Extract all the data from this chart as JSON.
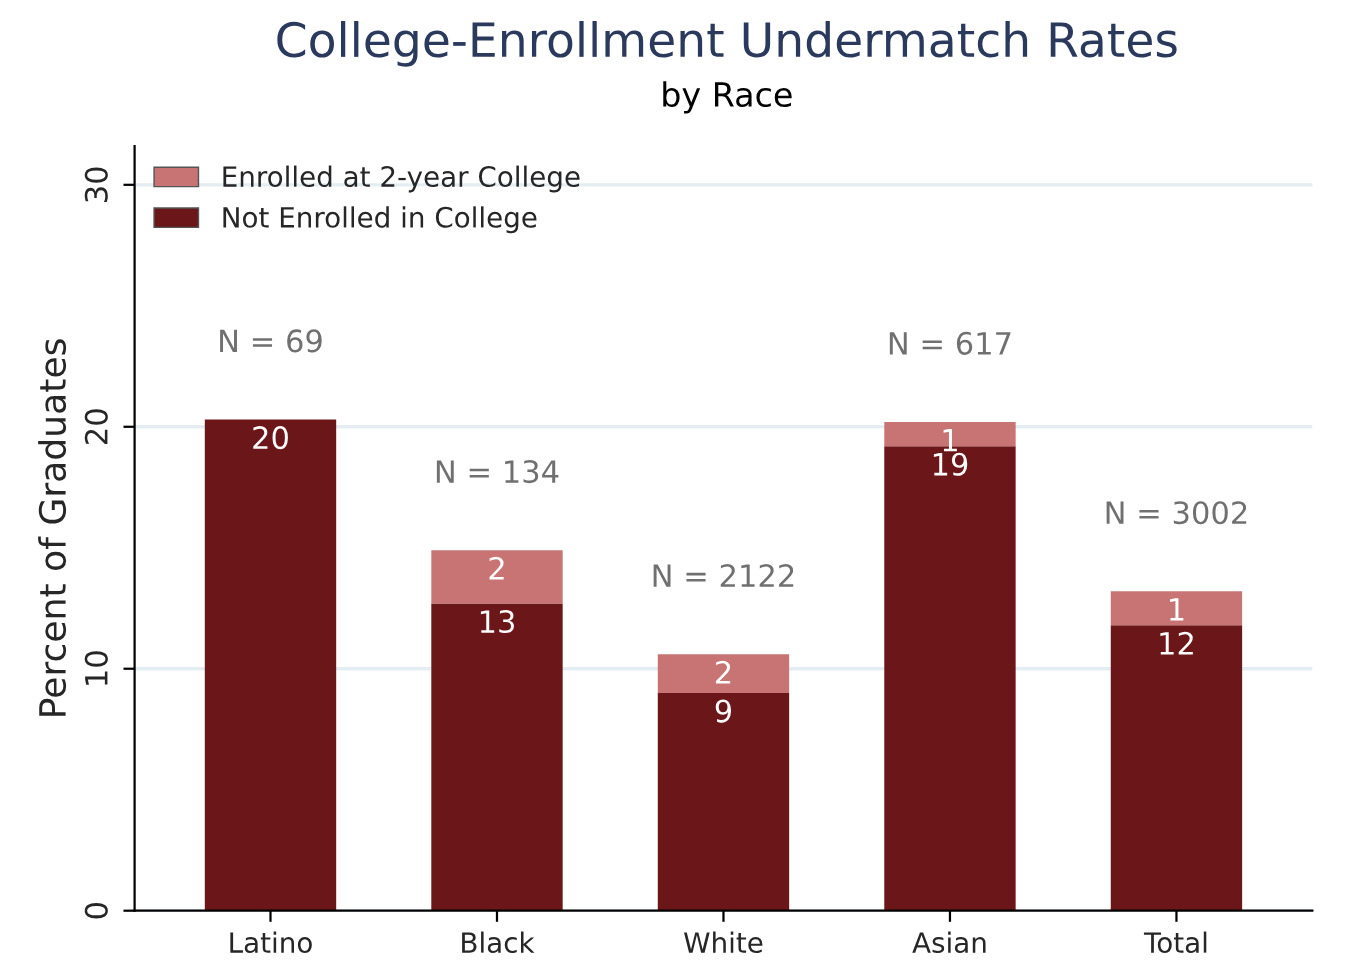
{
  "chart_data": {
    "type": "bar",
    "title": "College-Enrollment Undermatch Rates",
    "subtitle": "by Race",
    "ylabel": "Percent of Graduates",
    "categories": [
      "Latino",
      "Black",
      "White",
      "Asian",
      "Total"
    ],
    "stacked": true,
    "series": [
      {
        "name": "Not Enrolled in College",
        "color": "#6b1619",
        "values": [
          20.3,
          12.7,
          9.0,
          19.2,
          11.8
        ],
        "value_labels": [
          "20",
          "13",
          "9",
          "19",
          "12"
        ]
      },
      {
        "name": "Enrolled at 2-year College",
        "color": "#c87474",
        "values": [
          0,
          2.2,
          1.6,
          1.0,
          1.4
        ],
        "value_labels": [
          null,
          "2",
          "2",
          "1",
          "1"
        ]
      }
    ],
    "annotations": [
      "N = 69",
      "N = 134",
      "N = 2122",
      "N = 617",
      "N = 3002"
    ],
    "ylim": [
      0,
      31.6
    ],
    "yticks": [
      0,
      10,
      20,
      30
    ],
    "grid": "y",
    "legend": "top left"
  }
}
